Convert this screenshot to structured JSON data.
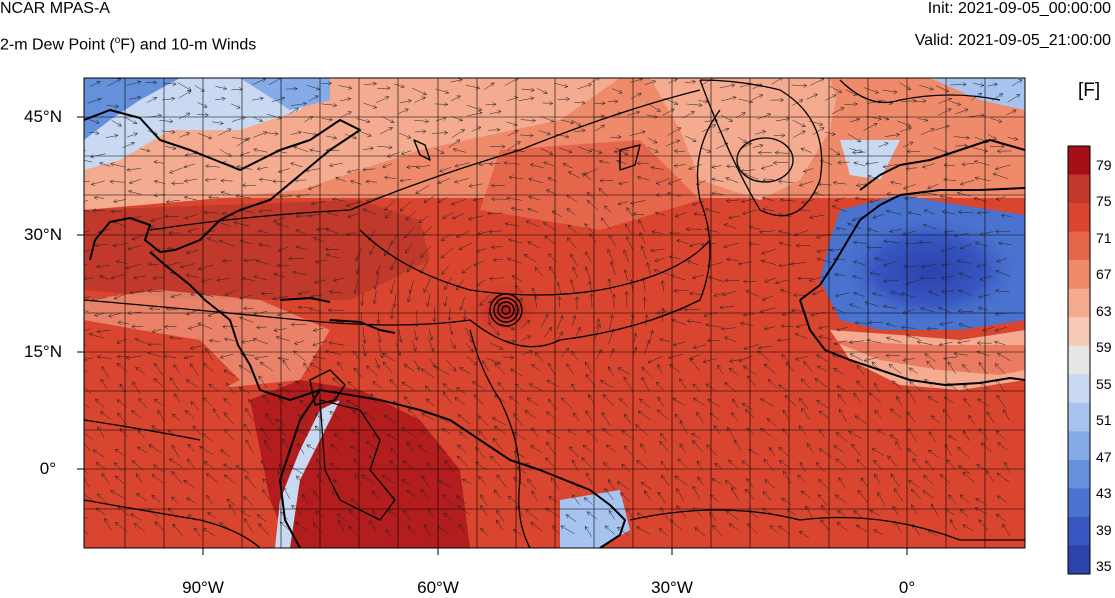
{
  "header": {
    "title": "NCAR MPAS-A",
    "subtitle_pre": "2-m Dew Point (",
    "subtitle_sup": "o",
    "subtitle_post": "F) and 10-m Winds",
    "init": "Init: 2021-09-05_00:00:00",
    "valid": "Valid: 2021-09-05_21:00:00"
  },
  "map": {
    "lat_labels": [
      "45°N",
      "30°N",
      "15°N",
      "0°"
    ],
    "lon_labels": [
      "90°W",
      "60°W",
      "30°W",
      "0°"
    ]
  },
  "colorbar": {
    "title": "[F]",
    "labels": [
      "79",
      "75",
      "71",
      "67",
      "63",
      "59",
      "55",
      "51",
      "47",
      "43",
      "39",
      "35"
    ],
    "colors": [
      "#a50f15",
      "#c0392b",
      "#d9452f",
      "#e5664b",
      "#ef8a6a",
      "#f4ab8f",
      "#f7cbb8",
      "#e6e6e6",
      "#c9d9f2",
      "#a7c3ef",
      "#85abe8",
      "#6490dc",
      "#4a72cf",
      "#3756c0",
      "#2c42ad"
    ]
  }
}
